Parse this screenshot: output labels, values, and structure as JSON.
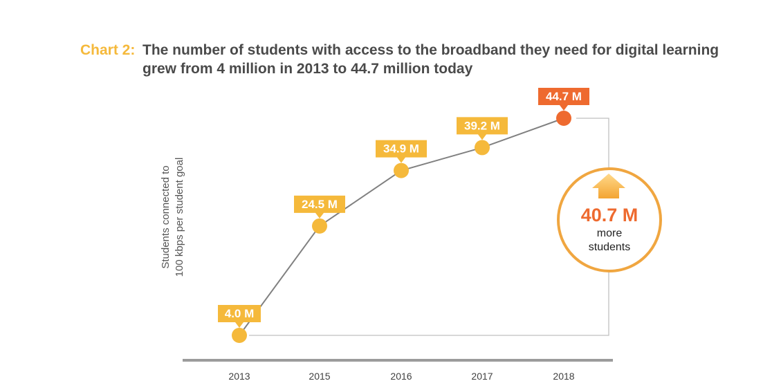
{
  "chart_data": {
    "type": "line",
    "title_prefix": "Chart 2:",
    "title_lines": [
      "The number of students with access to the broadband they need for digital learning",
      "grew from 4 million in 2013 to 44.7 million today"
    ],
    "ylabel_lines": [
      "Students connected to",
      "100 kbps per student goal"
    ],
    "xlabel": "",
    "categories": [
      "2013",
      "2015",
      "2016",
      "2017",
      "2018"
    ],
    "values": [
      4.0,
      24.5,
      34.9,
      39.2,
      44.7
    ],
    "data_labels": [
      "4.0 M",
      "24.5 M",
      "34.9 M",
      "39.2 M",
      "44.7 M"
    ],
    "unit": "M",
    "ylim": [
      0,
      44.7
    ],
    "grid": false,
    "legend": "none",
    "highlight_index": 4,
    "callout": {
      "value": "40.7 M",
      "lines": [
        "more",
        "students"
      ],
      "icon": "arrow-up-icon"
    },
    "colors": {
      "point": "#F5B93B",
      "highlight": "#EE6A2F",
      "line": "#808080",
      "title_prefix": "#F5B93B",
      "title": "#4A4A4A",
      "axis": "#9B9B9B",
      "tick_text": "#404040",
      "ylabel": "#555555",
      "bracket": "#BFBFBF",
      "callout_ring": "#F0A640",
      "callout_text": "#222222",
      "arrow_top": "#FFD98A",
      "arrow_bottom": "#F3A533"
    }
  }
}
